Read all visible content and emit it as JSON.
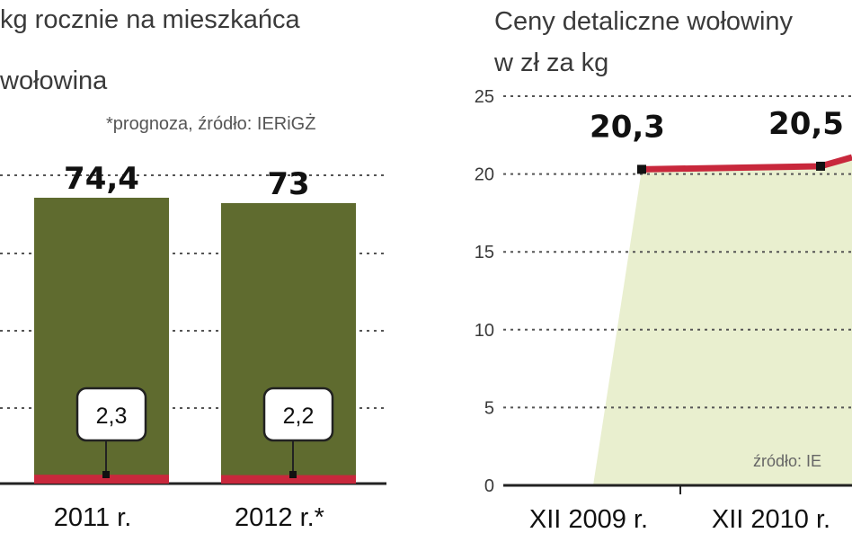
{
  "left_panel": {
    "title": "kg rocznie na mieszkańca",
    "legend_label": "wołowina",
    "note": "*prognoza, źródło: IERiGŻ"
  },
  "right_panel": {
    "title_line1": "Ceny detaliczne wołowiny",
    "title_line2": "w zł za kg",
    "source": "źródło: IE"
  },
  "colors": {
    "bar_olive": "#5f6b2f",
    "beef_red": "#c8283c",
    "area_fill": "#e9efcf",
    "grid": "#555555"
  },
  "chart_data": [
    {
      "type": "bar",
      "categories": [
        "2011 r.",
        "2012 r.*"
      ],
      "series": [
        {
          "values": [
            74.4,
            73
          ],
          "labels": [
            "74,4",
            "73"
          ],
          "color": "#5f6b2f"
        },
        {
          "name": "wołowina",
          "values": [
            2.3,
            2.2
          ],
          "labels": [
            "2,3",
            "2,2"
          ],
          "color": "#c8283c"
        }
      ]
    },
    {
      "type": "area",
      "categories": [
        "XII 2009 r.",
        "XII 2010 r."
      ],
      "ylim": [
        0,
        25
      ],
      "yticks": [
        "0",
        "5",
        "10",
        "15",
        "20",
        "25"
      ],
      "series": [
        {
          "values": [
            20.3,
            20.5
          ],
          "labels": [
            "20,3",
            "20,5"
          ],
          "color": "#c8283c"
        }
      ],
      "grid": true
    }
  ]
}
